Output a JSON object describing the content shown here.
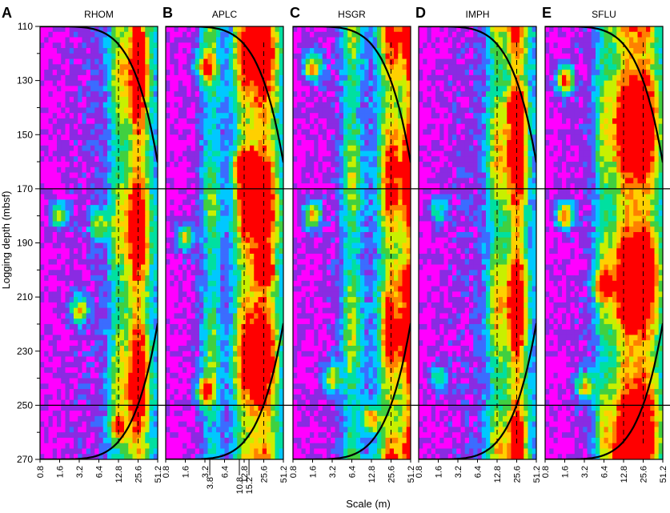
{
  "chart_data": {
    "type": "heatmap",
    "description_kind": "wavelet scalogram panels",
    "ylabel": "Logging depth (mbsf)",
    "xlabel": "Scale (m)",
    "ylim": [
      110,
      270
    ],
    "y_ticks": [
      110,
      130,
      150,
      170,
      190,
      210,
      230,
      250,
      270
    ],
    "x_scale": "log2",
    "xlim": [
      0.8,
      51.2
    ],
    "x_ticks": [
      "0.8",
      "1.6",
      "3.2",
      "6.4",
      "12.8",
      "25.6",
      "51.2"
    ],
    "reference_depths": [
      170,
      250
    ],
    "extra_scale_marks": {
      "panel": "B",
      "labels": [
        "3.8",
        "10.8",
        "15.2"
      ],
      "values": [
        3.8,
        10.8,
        15.2
      ]
    },
    "colormap": [
      "#ff00ff",
      "#8a2be2",
      "#3b6cff",
      "#00c8ff",
      "#00e0a0",
      "#40d040",
      "#c8f000",
      "#ffd000",
      "#ff8000",
      "#ff0000"
    ],
    "panels": [
      {
        "letter": "A",
        "name": "RHOM",
        "ridges": [
          {
            "scale": 25.6,
            "strength": 1.0,
            "width": 0.55
          },
          {
            "scale": 12.8,
            "strength": 0.45,
            "width": 0.5
          }
        ],
        "hotspots": [
          {
            "depth": 183,
            "scale": 6.4,
            "strength": 0.5
          },
          {
            "depth": 215,
            "scale": 3.2,
            "strength": 0.6
          },
          {
            "depth": 258,
            "scale": 12.8,
            "strength": 0.5
          },
          {
            "depth": 180,
            "scale": 1.6,
            "strength": 0.55
          }
        ]
      },
      {
        "letter": "B",
        "name": "APLC",
        "ridges": [
          {
            "scale": 25.6,
            "strength": 0.95,
            "width": 0.7
          },
          {
            "scale": 12.8,
            "strength": 0.7,
            "width": 0.6
          },
          {
            "scale": 4.0,
            "strength": 0.45,
            "width": 0.5
          }
        ],
        "hotspots": [
          {
            "depth": 162,
            "scale": 12.8,
            "strength": 0.9
          },
          {
            "depth": 200,
            "scale": 25.6,
            "strength": 0.9
          },
          {
            "depth": 245,
            "scale": 3.2,
            "strength": 0.7
          },
          {
            "depth": 125,
            "scale": 3.2,
            "strength": 0.6
          },
          {
            "depth": 188,
            "scale": 1.6,
            "strength": 0.6
          }
        ]
      },
      {
        "letter": "C",
        "name": "HSGR",
        "ridges": [
          {
            "scale": 51.2,
            "strength": 1.0,
            "width": 0.4
          },
          {
            "scale": 25.6,
            "strength": 0.8,
            "width": 0.6
          },
          {
            "scale": 6.4,
            "strength": 0.5,
            "width": 0.5
          }
        ],
        "hotspots": [
          {
            "depth": 125,
            "scale": 1.6,
            "strength": 0.8
          },
          {
            "depth": 180,
            "scale": 1.6,
            "strength": 0.7
          },
          {
            "depth": 205,
            "scale": 51.2,
            "strength": 0.8
          },
          {
            "depth": 240,
            "scale": 3.2,
            "strength": 0.6
          },
          {
            "depth": 255,
            "scale": 12.8,
            "strength": 0.6
          }
        ]
      },
      {
        "letter": "D",
        "name": "IMPH",
        "ridges": [
          {
            "scale": 25.6,
            "strength": 1.0,
            "width": 0.5
          },
          {
            "scale": 12.8,
            "strength": 0.55,
            "width": 0.5
          }
        ],
        "hotspots": [
          {
            "depth": 140,
            "scale": 25.6,
            "strength": 0.8
          },
          {
            "depth": 240,
            "scale": 1.6,
            "strength": 0.45
          },
          {
            "depth": 178,
            "scale": 1.6,
            "strength": 0.4
          }
        ]
      },
      {
        "letter": "E",
        "name": "SFLU",
        "ridges": [
          {
            "scale": 25.6,
            "strength": 1.0,
            "width": 0.8
          },
          {
            "scale": 12.8,
            "strength": 0.8,
            "width": 0.6
          },
          {
            "scale": 6.4,
            "strength": 0.5,
            "width": 0.5
          }
        ],
        "hotspots": [
          {
            "depth": 130,
            "scale": 1.6,
            "strength": 0.9
          },
          {
            "depth": 180,
            "scale": 1.6,
            "strength": 0.8
          },
          {
            "depth": 200,
            "scale": 25.6,
            "strength": 1.0
          },
          {
            "depth": 205,
            "scale": 6.4,
            "strength": 0.6
          },
          {
            "depth": 243,
            "scale": 3.2,
            "strength": 0.6
          },
          {
            "depth": 270,
            "scale": 12.8,
            "strength": 0.7
          }
        ]
      }
    ]
  }
}
